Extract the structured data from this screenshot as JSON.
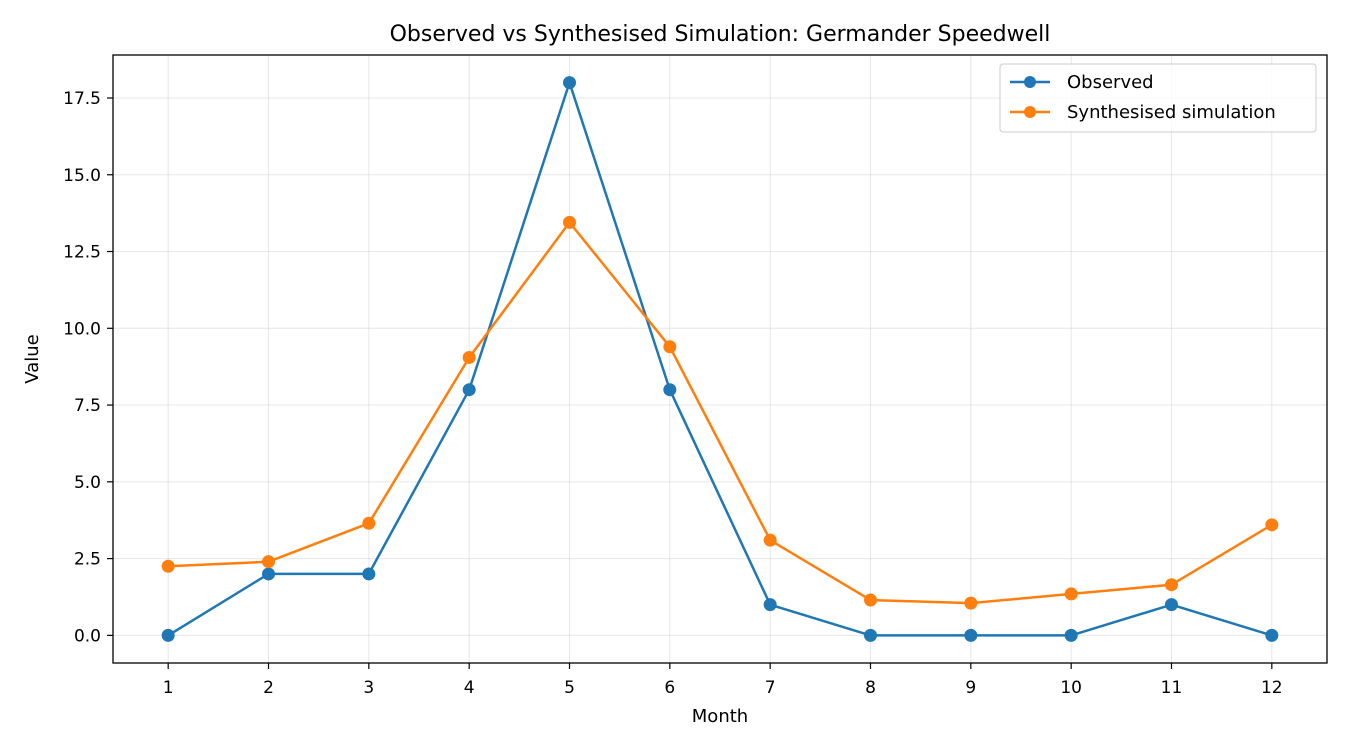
{
  "chart_data": {
    "type": "line",
    "title": "Observed vs Synthesised Simulation: Germander Speedwell",
    "xlabel": "Month",
    "ylabel": "Value",
    "x": [
      1,
      2,
      3,
      4,
      5,
      6,
      7,
      8,
      9,
      10,
      11,
      12
    ],
    "x_tick_labels": [
      "1",
      "2",
      "3",
      "4",
      "5",
      "6",
      "7",
      "8",
      "9",
      "10",
      "11",
      "12"
    ],
    "y_ticks": [
      0.0,
      2.5,
      5.0,
      7.5,
      10.0,
      12.5,
      15.0,
      17.5
    ],
    "y_tick_labels": [
      "0.0",
      "2.5",
      "5.0",
      "7.5",
      "10.0",
      "12.5",
      "15.0",
      "17.5"
    ],
    "xlim": [
      0.45,
      12.55
    ],
    "ylim": [
      -0.9,
      18.9
    ],
    "grid": true,
    "legend_position": "top-right",
    "series": [
      {
        "name": "Observed",
        "color": "#1f77b4",
        "values": [
          0,
          2,
          2,
          8,
          18,
          8,
          1,
          0,
          0,
          0,
          1,
          0
        ]
      },
      {
        "name": "Synthesised simulation",
        "color": "#ff7f0e",
        "values": [
          2.25,
          2.4,
          3.65,
          9.05,
          13.45,
          9.4,
          3.1,
          1.15,
          1.05,
          1.35,
          1.65,
          3.6
        ]
      }
    ]
  }
}
